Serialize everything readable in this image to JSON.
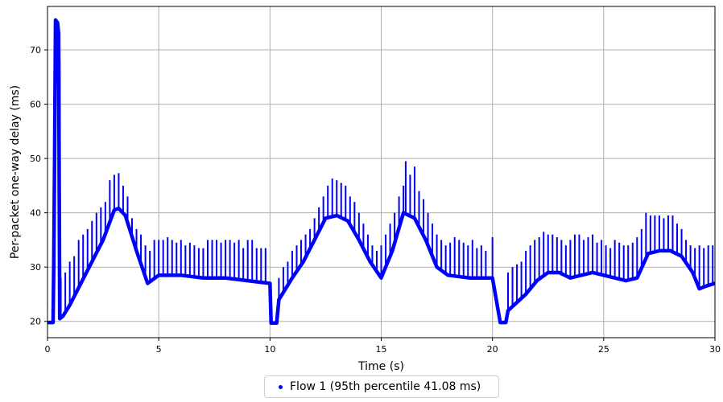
{
  "chart_data": {
    "type": "scatter",
    "title": "",
    "xlabel": "Time (s)",
    "ylabel": "Per-packet one-way delay (ms)",
    "xlim": [
      0,
      30
    ],
    "ylim": [
      17,
      78
    ],
    "x_ticks": [
      0,
      5,
      10,
      15,
      20,
      25,
      30
    ],
    "y_ticks": [
      20,
      30,
      40,
      50,
      60,
      70
    ],
    "grid": true,
    "legend_position": "bottom-center, below plot",
    "series": [
      {
        "name": "Flow 1 (95th percentile 41.08 ms)",
        "color": "#0000ff",
        "baseline": [
          [
            0.0,
            19.8
          ],
          [
            0.25,
            19.8
          ],
          [
            0.28,
            30
          ],
          [
            0.32,
            50
          ],
          [
            0.36,
            75.5
          ],
          [
            0.45,
            75
          ],
          [
            0.5,
            73
          ],
          [
            0.55,
            20.5
          ],
          [
            0.7,
            21
          ],
          [
            1.0,
            23
          ],
          [
            1.5,
            27
          ],
          [
            2.0,
            31
          ],
          [
            2.5,
            35
          ],
          [
            3.0,
            40.5
          ],
          [
            3.2,
            40.8
          ],
          [
            3.5,
            39.5
          ],
          [
            4.0,
            33
          ],
          [
            4.5,
            27
          ],
          [
            5.0,
            28.5
          ],
          [
            6.0,
            28.5
          ],
          [
            7.0,
            28
          ],
          [
            8.0,
            28
          ],
          [
            9.0,
            27.5
          ],
          [
            10.0,
            27
          ],
          [
            10.05,
            19.7
          ],
          [
            10.3,
            19.7
          ],
          [
            10.4,
            24
          ],
          [
            11.0,
            28
          ],
          [
            11.5,
            31
          ],
          [
            12.0,
            35
          ],
          [
            12.5,
            39
          ],
          [
            13.0,
            39.5
          ],
          [
            13.5,
            38.5
          ],
          [
            14.0,
            35
          ],
          [
            14.5,
            31
          ],
          [
            15.0,
            28
          ],
          [
            15.5,
            33
          ],
          [
            16.0,
            40
          ],
          [
            16.5,
            39
          ],
          [
            17.0,
            35
          ],
          [
            17.5,
            30
          ],
          [
            18.0,
            28.5
          ],
          [
            19.0,
            28
          ],
          [
            20.0,
            28
          ],
          [
            20.35,
            19.8
          ],
          [
            20.6,
            19.8
          ],
          [
            20.7,
            22
          ],
          [
            21.5,
            25
          ],
          [
            22.0,
            27.5
          ],
          [
            22.5,
            29
          ],
          [
            23.0,
            29
          ],
          [
            23.5,
            28
          ],
          [
            24.0,
            28.5
          ],
          [
            24.5,
            29
          ],
          [
            25.0,
            28.5
          ],
          [
            25.5,
            28
          ],
          [
            26.0,
            27.5
          ],
          [
            26.5,
            28
          ],
          [
            27.0,
            32.5
          ],
          [
            27.5,
            33
          ],
          [
            28.0,
            33
          ],
          [
            28.5,
            32
          ],
          [
            29.0,
            29
          ],
          [
            29.3,
            26
          ],
          [
            29.6,
            26.5
          ],
          [
            30.0,
            27
          ]
        ],
        "spikes": [
          [
            0.3,
            61
          ],
          [
            0.42,
            64
          ],
          [
            0.55,
            68
          ],
          [
            0.6,
            28
          ],
          [
            0.8,
            29
          ],
          [
            1.0,
            31
          ],
          [
            1.2,
            32
          ],
          [
            1.4,
            35
          ],
          [
            1.6,
            36
          ],
          [
            1.8,
            37
          ],
          [
            2.0,
            38.5
          ],
          [
            2.2,
            40
          ],
          [
            2.4,
            41
          ],
          [
            2.6,
            42
          ],
          [
            2.8,
            46
          ],
          [
            3.0,
            47
          ],
          [
            3.2,
            47.3
          ],
          [
            3.4,
            45
          ],
          [
            3.6,
            43
          ],
          [
            3.8,
            39
          ],
          [
            4.0,
            37
          ],
          [
            4.2,
            36
          ],
          [
            4.4,
            34
          ],
          [
            4.6,
            33
          ],
          [
            4.8,
            35
          ],
          [
            5.0,
            35
          ],
          [
            5.2,
            35
          ],
          [
            5.4,
            35.5
          ],
          [
            5.6,
            35
          ],
          [
            5.8,
            34.5
          ],
          [
            6.0,
            35
          ],
          [
            6.2,
            34
          ],
          [
            6.4,
            34.5
          ],
          [
            6.6,
            34
          ],
          [
            6.8,
            33.5
          ],
          [
            7.0,
            33.5
          ],
          [
            7.2,
            35
          ],
          [
            7.4,
            35
          ],
          [
            7.6,
            35
          ],
          [
            7.8,
            34.5
          ],
          [
            8.0,
            35
          ],
          [
            8.2,
            35
          ],
          [
            8.4,
            34.5
          ],
          [
            8.6,
            35
          ],
          [
            8.8,
            33.5
          ],
          [
            9.0,
            35
          ],
          [
            9.2,
            35
          ],
          [
            9.4,
            33.5
          ],
          [
            9.6,
            33.5
          ],
          [
            9.8,
            33.5
          ],
          [
            10.4,
            28
          ],
          [
            10.6,
            30
          ],
          [
            10.8,
            31
          ],
          [
            11.0,
            33
          ],
          [
            11.2,
            34
          ],
          [
            11.4,
            35
          ],
          [
            11.6,
            36
          ],
          [
            11.8,
            37
          ],
          [
            12.0,
            39
          ],
          [
            12.2,
            41
          ],
          [
            12.4,
            43
          ],
          [
            12.6,
            45
          ],
          [
            12.8,
            46.3
          ],
          [
            13.0,
            46
          ],
          [
            13.2,
            45.5
          ],
          [
            13.4,
            45
          ],
          [
            13.6,
            43
          ],
          [
            13.8,
            42
          ],
          [
            14.0,
            40
          ],
          [
            14.2,
            38
          ],
          [
            14.4,
            36
          ],
          [
            14.6,
            34
          ],
          [
            14.8,
            33
          ],
          [
            15.0,
            34
          ],
          [
            15.2,
            36
          ],
          [
            15.4,
            38
          ],
          [
            15.6,
            40
          ],
          [
            15.8,
            43
          ],
          [
            16.0,
            45
          ],
          [
            16.1,
            49.5
          ],
          [
            16.3,
            47
          ],
          [
            16.5,
            48.5
          ],
          [
            16.7,
            44
          ],
          [
            16.9,
            42.5
          ],
          [
            17.1,
            40
          ],
          [
            17.3,
            38
          ],
          [
            17.5,
            36
          ],
          [
            17.7,
            35
          ],
          [
            17.9,
            34
          ],
          [
            18.1,
            34.5
          ],
          [
            18.3,
            35.5
          ],
          [
            18.5,
            35
          ],
          [
            18.7,
            34.5
          ],
          [
            18.9,
            34
          ],
          [
            19.1,
            35
          ],
          [
            19.3,
            33.5
          ],
          [
            19.5,
            34
          ],
          [
            19.7,
            33
          ],
          [
            20.0,
            35.5
          ],
          [
            20.7,
            29
          ],
          [
            20.9,
            30
          ],
          [
            21.1,
            30.5
          ],
          [
            21.3,
            31
          ],
          [
            21.5,
            33
          ],
          [
            21.7,
            34
          ],
          [
            21.9,
            35
          ],
          [
            22.1,
            35.5
          ],
          [
            22.3,
            36.5
          ],
          [
            22.5,
            36
          ],
          [
            22.7,
            36
          ],
          [
            22.9,
            35.5
          ],
          [
            23.1,
            35
          ],
          [
            23.3,
            34
          ],
          [
            23.5,
            35
          ],
          [
            23.7,
            36
          ],
          [
            23.9,
            36
          ],
          [
            24.1,
            35
          ],
          [
            24.3,
            35.5
          ],
          [
            24.5,
            36
          ],
          [
            24.7,
            34.5
          ],
          [
            24.9,
            35
          ],
          [
            25.1,
            34
          ],
          [
            25.3,
            33.5
          ],
          [
            25.5,
            35
          ],
          [
            25.7,
            34.5
          ],
          [
            25.9,
            34
          ],
          [
            26.1,
            34
          ],
          [
            26.3,
            34.5
          ],
          [
            26.5,
            35.5
          ],
          [
            26.7,
            37
          ],
          [
            26.9,
            40
          ],
          [
            27.1,
            39.5
          ],
          [
            27.3,
            39.5
          ],
          [
            27.5,
            39.5
          ],
          [
            27.7,
            39
          ],
          [
            27.9,
            39.5
          ],
          [
            28.1,
            39.5
          ],
          [
            28.3,
            38
          ],
          [
            28.5,
            37
          ],
          [
            28.7,
            35
          ],
          [
            28.9,
            34
          ],
          [
            29.1,
            33.5
          ],
          [
            29.3,
            34
          ],
          [
            29.5,
            33.5
          ],
          [
            29.7,
            34
          ],
          [
            29.9,
            34
          ]
        ]
      }
    ]
  },
  "legend": {
    "label": "Flow 1 (95th percentile 41.08 ms)",
    "color": "#0000ff"
  }
}
